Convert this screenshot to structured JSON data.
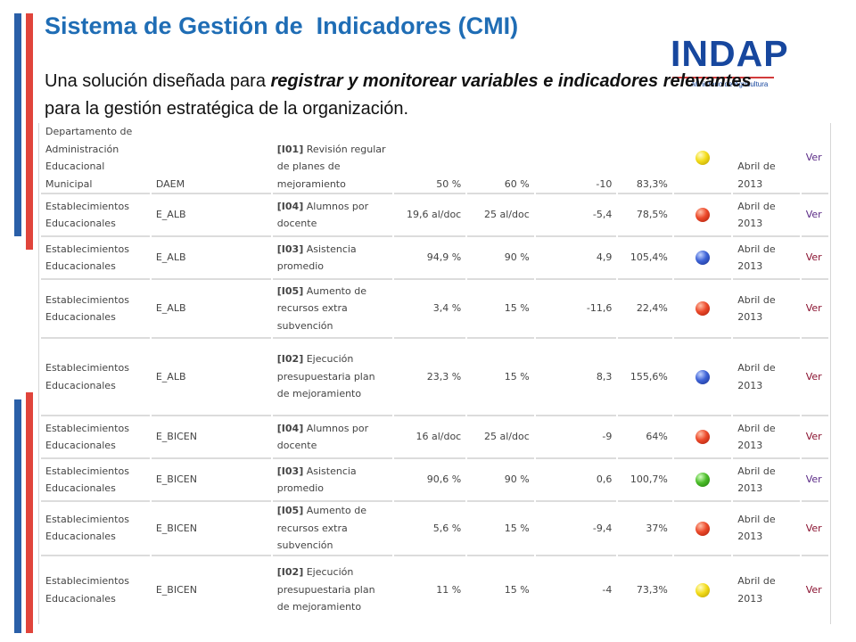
{
  "slide": {
    "title": "Sistema de Gestión de  Indicadores (CMI)",
    "intro_pre": "Una solución diseñada para ",
    "intro_emph": "registrar y monitorear variables e indicadores relevantes",
    "intro_post": " para la gestión estratégica de la organización."
  },
  "logo": {
    "name": "INDAP",
    "subtitle": "Ministerio de Agricultura"
  },
  "colors": {
    "title_blue": "#1f6db5",
    "logo_blue": "#17479e",
    "bar_blue": "#2a5fa8",
    "bar_red": "#e0443b",
    "status_yellow": "#f3dc1a",
    "status_red": "#ec4a2b",
    "status_blue": "#3e63d6",
    "status_green": "#4cbd2a"
  },
  "table": {
    "rows": [
      {
        "unit": "Departamento de Administración Educacional Municipal",
        "code": "DAEM",
        "ind_code": "[I01]",
        "ind_name": "Revisión regular de planes de mejoramiento",
        "actual": "50 %",
        "meta": "60 %",
        "diff": "-10",
        "pct": "83,3%",
        "status": "yellow",
        "period": "Abril de 2013",
        "link": "Ver"
      },
      {
        "unit": "Establecimientos Educacionales",
        "code": "E_ALB",
        "ind_code": "[I04]",
        "ind_name": "Alumnos por docente",
        "actual": "19,6 al/doc",
        "meta": "25 al/doc",
        "diff": "-5,4",
        "pct": "78,5%",
        "status": "red",
        "period": "Abril de 2013",
        "link": "Ver"
      },
      {
        "unit": "Establecimientos Educacionales",
        "code": "E_ALB",
        "ind_code": "[I03]",
        "ind_name": "Asistencia promedio",
        "actual": "94,9 %",
        "meta": "90 %",
        "diff": "4,9",
        "pct": "105,4%",
        "status": "blue",
        "period": "Abril de 2013",
        "link": "Ver"
      },
      {
        "unit": "Establecimientos Educacionales",
        "code": "E_ALB",
        "ind_code": "[I05]",
        "ind_name": "Aumento de recursos extra subvención",
        "actual": "3,4 %",
        "meta": "15 %",
        "diff": "-11,6",
        "pct": "22,4%",
        "status": "red",
        "period": "Abril de 2013",
        "link": "Ver"
      },
      {
        "unit": "Establecimientos Educacionales",
        "code": "E_ALB",
        "ind_code": "[I02]",
        "ind_name": "Ejecución presupuestaria plan de mejoramiento",
        "actual": "23,3 %",
        "meta": "15 %",
        "diff": "8,3",
        "pct": "155,6%",
        "status": "blue",
        "period": "Abril de 2013",
        "link": "Ver"
      },
      {
        "unit": "Establecimientos Educacionales",
        "code": "E_BICEN",
        "ind_code": "[I04]",
        "ind_name": "Alumnos por docente",
        "actual": "16 al/doc",
        "meta": "25 al/doc",
        "diff": "-9",
        "pct": "64%",
        "status": "red",
        "period": "Abril de 2013",
        "link": "Ver"
      },
      {
        "unit": "Establecimientos Educacionales",
        "code": "E_BICEN",
        "ind_code": "[I03]",
        "ind_name": "Asistencia promedio",
        "actual": "90,6 %",
        "meta": "90 %",
        "diff": "0,6",
        "pct": "100,7%",
        "status": "green",
        "period": "Abril de 2013",
        "link": "Ver"
      },
      {
        "unit": "Establecimientos Educacionales",
        "code": "E_BICEN",
        "ind_code": "[I05]",
        "ind_name": "Aumento de recursos extra subvención",
        "actual": "5,6 %",
        "meta": "15 %",
        "diff": "-9,4",
        "pct": "37%",
        "status": "red",
        "period": "Abril de 2013",
        "link": "Ver"
      },
      {
        "unit": "Establecimientos Educacionales",
        "code": "E_BICEN",
        "ind_code": "[I02]",
        "ind_name": "Ejecución presupuestaria plan de mejoramiento",
        "actual": "11 %",
        "meta": "15 %",
        "diff": "-4",
        "pct": "73,3%",
        "status": "yellow",
        "period": "Abril de 2013",
        "link": "Ver"
      }
    ]
  }
}
